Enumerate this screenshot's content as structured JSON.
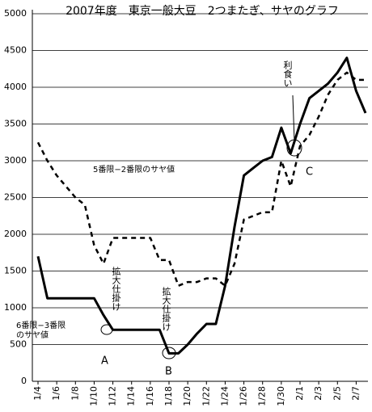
{
  "chart_data": {
    "type": "line",
    "title": "2007年度　東京一般大豆　2つまたぎ、サヤのグラフ",
    "categories": [
      "1/4",
      null,
      "1/6",
      null,
      "1/8",
      null,
      "1/10",
      null,
      "1/12",
      null,
      "1/14",
      null,
      "1/16",
      null,
      "1/18",
      null,
      "1/20",
      null,
      "1/22",
      null,
      "1/24",
      null,
      "1/26",
      null,
      "1/28",
      null,
      "1/30",
      null,
      "2/1",
      null,
      "2/3",
      null,
      "2/5",
      null,
      "2/7",
      null
    ],
    "series": [
      {
        "name": "6番限−3番限\nのサヤ値",
        "color": "#000000",
        "dash": false,
        "values": [
          1700,
          1130,
          1130,
          1130,
          1130,
          1130,
          1130,
          900,
          700,
          700,
          700,
          700,
          700,
          700,
          380,
          380,
          500,
          650,
          780,
          780,
          1300,
          2100,
          2800,
          2900,
          3000,
          3050,
          3450,
          3100,
          3500,
          3850,
          3950,
          4050,
          4200,
          4400,
          3950,
          3650
        ]
      },
      {
        "name": "5番限−2番限のサヤ値",
        "color": "#000000",
        "dash": true,
        "values": [
          3250,
          3000,
          2800,
          2650,
          2500,
          2400,
          1850,
          1600,
          1950,
          1950,
          1950,
          1950,
          1950,
          1650,
          1650,
          1300,
          1350,
          1350,
          1400,
          1400,
          1300,
          1600,
          2200,
          2250,
          2300,
          2300,
          3000,
          2650,
          3200,
          3350,
          3600,
          3900,
          4100,
          4200,
          4100,
          4100
        ]
      }
    ],
    "ylim": [
      0,
      5000
    ],
    "yticks": [
      0,
      500,
      1000,
      1500,
      2000,
      2500,
      3000,
      3500,
      4000,
      4500,
      5000
    ],
    "grid": true,
    "annotations": [
      "拡大仕掛け",
      "拡大仕掛け",
      "利食い",
      "A",
      "B",
      "C"
    ]
  }
}
